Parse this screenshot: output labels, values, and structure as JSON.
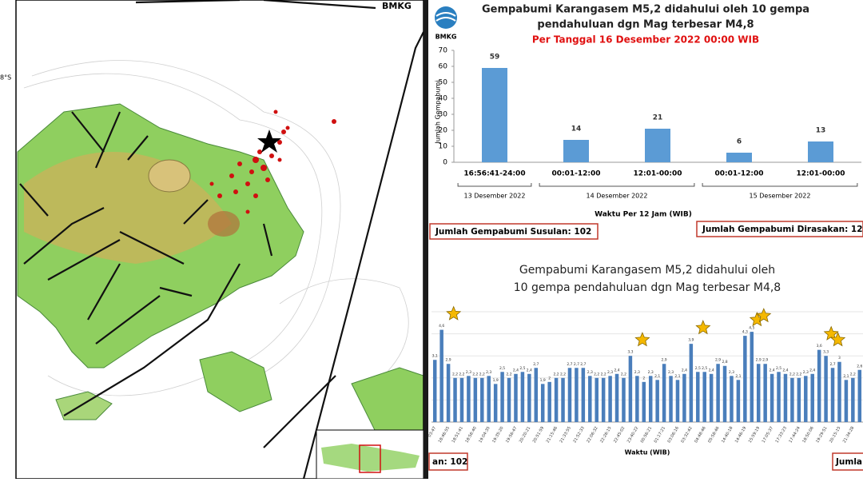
{
  "map": {
    "agency": "BMKG",
    "latitude_label": "8°S"
  },
  "logo": "BMKG",
  "chart_data": [
    {
      "type": "bar",
      "title": [
        "Gempabumi Karangasem M5,2 didahului oleh 10 gempa",
        "pendahuluan dgn Mag terbesar M4,8"
      ],
      "subtitle": "Per Tanggal 16 Desember 2022 00:00 WIB",
      "ylabel": "Jumlah Gempabumi",
      "xlabel": "Waktu Per 12 Jam (WIB)",
      "categories": [
        "16:56:41-24:00",
        "00:01-12:00",
        "12:01-00:00",
        "00:01-12:00",
        "12:01-00:00"
      ],
      "category_groups": [
        "13 Desember 2022",
        "14 Desember 2022",
        "15 Desember 2022"
      ],
      "values": [
        59,
        14,
        21,
        6,
        13
      ],
      "color": "#5b9bd5",
      "ylim": [
        0,
        70
      ],
      "yticks": [
        0,
        10,
        20,
        30,
        40,
        50,
        60,
        70
      ],
      "annotations": [
        "Jumlah Gempabumi Susulan: 102",
        "Jumlah Gempabumi Dirasakan: 12"
      ]
    },
    {
      "type": "bar",
      "title": [
        "Gempabumi Karangasem M5,2 didahului oleh",
        "10 gempa pendahuluan dgn Mag terbesar M4,8"
      ],
      "xlabel": "Waktu (WIB)",
      "categories": [
        "03:47",
        null,
        "18:46:55",
        null,
        "18:51:41",
        null,
        "18:56:40",
        null,
        "19:04:35",
        null,
        "19:35:20",
        null,
        "19:56:47",
        null,
        "20:20:21",
        null,
        "20:51:59",
        null,
        "21:15:46",
        null,
        "21:33:55",
        null,
        "21:52:33",
        null,
        "22:06:32",
        null,
        "22:26:15",
        null,
        "22:45:02",
        null,
        "23:40:22",
        null,
        "00:56:21",
        null,
        "01:17:21",
        null,
        "03:06:16",
        null,
        "03:32:42",
        null,
        "04:48:46",
        null,
        "05:58:46",
        null,
        "14:40:18",
        null,
        "14:46:19",
        null,
        "15:59:19",
        null,
        "17:05:37",
        null,
        "17:33:23",
        null,
        "17:44:24",
        null,
        "18:50:06",
        null,
        "19:29:51",
        null,
        "20:15:15",
        null,
        "21:34:28",
        null
      ],
      "values": [
        3.1,
        4.6,
        2.9,
        2.2,
        2.2,
        2.3,
        2.2,
        2.2,
        2.3,
        1.9,
        2.5,
        2.2,
        2.4,
        2.5,
        2.4,
        2.7,
        1.9,
        2.0,
        2.2,
        2.2,
        2.7,
        2.7,
        2.7,
        2.3,
        2.2,
        2.2,
        2.3,
        2.4,
        2.2,
        3.3,
        2.3,
        2.0,
        2.3,
        2.1,
        2.9,
        2.3,
        2.1,
        2.4,
        3.9,
        2.5,
        2.5,
        2.4,
        2.9,
        2.8,
        2.3,
        2.1,
        4.3,
        4.5,
        2.9,
        2.9,
        2.4,
        2.5,
        2.4,
        2.2,
        2.2,
        2.3,
        2.4,
        3.6,
        3.3,
        2.7,
        3.0,
        2.1,
        2.2,
        2.6
      ],
      "value_labels": [
        "3,1",
        "4,6",
        "2,9",
        "2,2",
        "2,2",
        "2,3",
        "2,2",
        "2,2",
        "2,3",
        "1,9",
        "2,5",
        "2,2",
        "2,4",
        "2,5",
        "2,4",
        "2,7",
        "1,9",
        "2",
        "2,2",
        "2,2",
        "2,7",
        "2,7",
        "2,7",
        "2,3",
        "2,2",
        "2,2",
        "2,3",
        "2,4",
        "2,2",
        "3,3",
        "2,3",
        "2",
        "2,3",
        "2,1",
        "2,9",
        "2,3",
        "2,1",
        "2,4",
        "3,9",
        "2,5",
        "2,5",
        "2,4",
        "2,9",
        "2,8",
        "2,3",
        "2,1",
        "4,3",
        "4,5",
        "2,9",
        "2,9",
        "2,4",
        "2,5",
        "2,4",
        "2,2",
        "2,2",
        "2,3",
        "2,4",
        "3,6",
        "3,3",
        "2,7",
        "3",
        "2,1",
        "2,2",
        "2,6"
      ],
      "color": "#4a7ebb",
      "ylim": [
        0,
        5.5
      ],
      "grid": true,
      "annotations": [
        "an: 102",
        "Jumla"
      ]
    }
  ]
}
